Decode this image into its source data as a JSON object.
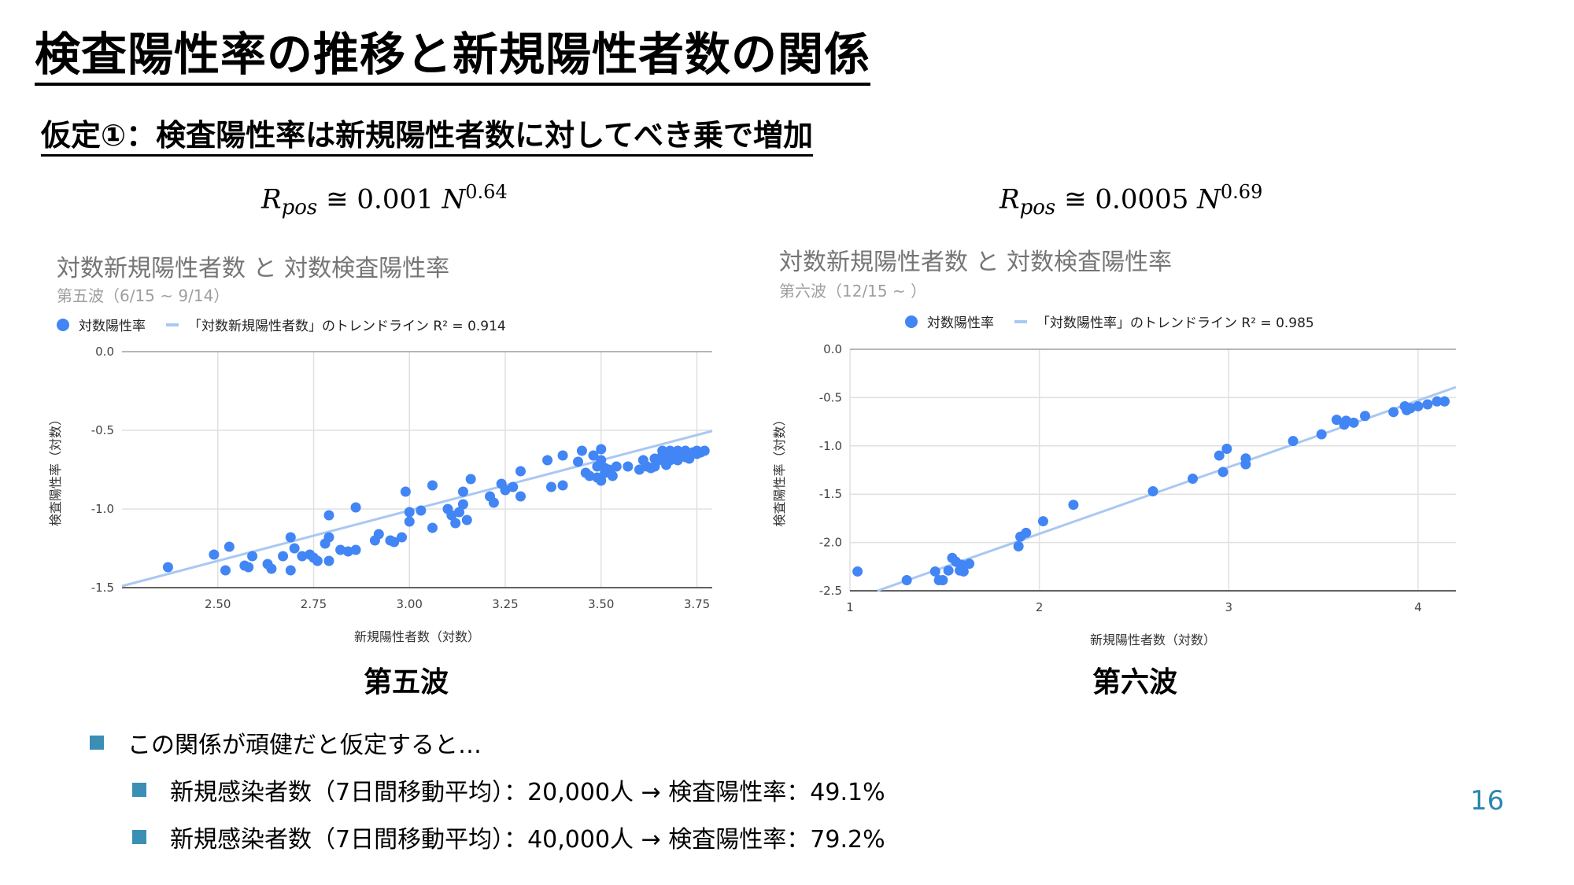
{
  "slide": {
    "title": "検査陽性率の推移と新規陽性者数の関係",
    "subtitle": "仮定①：検査陽性率は新規陽性者数に対してべき乗で増加",
    "page_number": "16"
  },
  "formulas": [
    {
      "lhs_var": "R",
      "lhs_sub": "pos",
      "op": "≅",
      "coef": "0.001",
      "var": "N",
      "exp": "0.64"
    },
    {
      "lhs_var": "R",
      "lhs_sub": "pos",
      "op": "≅",
      "coef": "0.0005",
      "var": "N",
      "exp": "0.69"
    }
  ],
  "wave_labels": [
    "第五波",
    "第六波"
  ],
  "bullets": {
    "main": "この関係が頑健だと仮定すると…",
    "sub": [
      {
        "text": "新規感染者数（7日間移動平均）：20,000人 → 検査陽性率：49.1%"
      },
      {
        "text": "新規感染者数（7日間移動平均）：40,000人 → 検査陽性率：79.2%"
      }
    ]
  },
  "colors": {
    "point": "#4285f4",
    "trendline": "#a9c8f2",
    "grid": "#e0e0e0",
    "bullet": "#3b8fb5",
    "page_number": "#2e86b0"
  },
  "chart_data": [
    {
      "type": "scatter",
      "title": "対数新規陽性者数 と 対数検査陽性率",
      "subtitle": "第五波（6/15 ~ 9/14）",
      "xlabel": "新規陽性者数（対数）",
      "ylabel": "検査陽性率（対数）",
      "xlim": [
        2.25,
        3.79
      ],
      "ylim": [
        -1.5,
        0.0
      ],
      "xticks": [
        2.5,
        2.75,
        3.0,
        3.25,
        3.5,
        3.75
      ],
      "xtick_labels": [
        "2.50",
        "2.75",
        "3.00",
        "3.25",
        "3.50",
        "3.75"
      ],
      "yticks": [
        0.0,
        -0.5,
        -1.0,
        -1.5
      ],
      "ytick_labels": [
        "0.0",
        "-0.5",
        "-1.0",
        "-1.5"
      ],
      "grid": true,
      "legend_position": "top-left",
      "series": [
        {
          "name": "対数陽性率",
          "points": [
            [
              2.37,
              -1.37
            ],
            [
              2.49,
              -1.29
            ],
            [
              2.52,
              -1.39
            ],
            [
              2.53,
              -1.24
            ],
            [
              2.57,
              -1.36
            ],
            [
              2.58,
              -1.37
            ],
            [
              2.59,
              -1.3
            ],
            [
              2.63,
              -1.35
            ],
            [
              2.64,
              -1.38
            ],
            [
              2.67,
              -1.3
            ],
            [
              2.69,
              -1.18
            ],
            [
              2.69,
              -1.39
            ],
            [
              2.7,
              -1.25
            ],
            [
              2.72,
              -1.3
            ],
            [
              2.74,
              -1.29
            ],
            [
              2.75,
              -1.31
            ],
            [
              2.76,
              -1.33
            ],
            [
              2.78,
              -1.22
            ],
            [
              2.79,
              -1.18
            ],
            [
              2.79,
              -1.04
            ],
            [
              2.79,
              -1.33
            ],
            [
              2.82,
              -1.26
            ],
            [
              2.84,
              -1.27
            ],
            [
              2.86,
              -1.26
            ],
            [
              2.86,
              -0.99
            ],
            [
              2.91,
              -1.2
            ],
            [
              2.92,
              -1.16
            ],
            [
              2.95,
              -1.2
            ],
            [
              2.96,
              -1.21
            ],
            [
              2.98,
              -1.18
            ],
            [
              2.99,
              -0.89
            ],
            [
              3.0,
              -1.02
            ],
            [
              3.0,
              -1.08
            ],
            [
              3.03,
              -1.01
            ],
            [
              3.06,
              -0.85
            ],
            [
              3.06,
              -1.12
            ],
            [
              3.1,
              -1.0
            ],
            [
              3.11,
              -1.04
            ],
            [
              3.12,
              -1.09
            ],
            [
              3.13,
              -1.02
            ],
            [
              3.14,
              -0.89
            ],
            [
              3.14,
              -0.97
            ],
            [
              3.15,
              -1.07
            ],
            [
              3.16,
              -0.81
            ],
            [
              3.21,
              -0.92
            ],
            [
              3.22,
              -0.96
            ],
            [
              3.24,
              -0.84
            ],
            [
              3.25,
              -0.88
            ],
            [
              3.27,
              -0.86
            ],
            [
              3.29,
              -0.76
            ],
            [
              3.29,
              -0.92
            ],
            [
              3.36,
              -0.69
            ],
            [
              3.37,
              -0.86
            ],
            [
              3.4,
              -0.85
            ],
            [
              3.4,
              -0.66
            ],
            [
              3.44,
              -0.7
            ],
            [
              3.45,
              -0.63
            ],
            [
              3.46,
              -0.77
            ],
            [
              3.47,
              -0.79
            ],
            [
              3.48,
              -0.66
            ],
            [
              3.49,
              -0.8
            ],
            [
              3.49,
              -0.73
            ],
            [
              3.5,
              -0.69
            ],
            [
              3.5,
              -0.62
            ],
            [
              3.5,
              -0.82
            ],
            [
              3.51,
              -0.77
            ],
            [
              3.51,
              -0.74
            ],
            [
              3.52,
              -0.75
            ],
            [
              3.53,
              -0.79
            ],
            [
              3.54,
              -0.73
            ],
            [
              3.57,
              -0.73
            ],
            [
              3.6,
              -0.75
            ],
            [
              3.61,
              -0.69
            ],
            [
              3.62,
              -0.73
            ],
            [
              3.63,
              -0.74
            ],
            [
              3.64,
              -0.68
            ],
            [
              3.64,
              -0.73
            ],
            [
              3.65,
              -0.69
            ],
            [
              3.66,
              -0.66
            ],
            [
              3.66,
              -0.63
            ],
            [
              3.67,
              -0.72
            ],
            [
              3.67,
              -0.65
            ],
            [
              3.68,
              -0.69
            ],
            [
              3.68,
              -0.63
            ],
            [
              3.69,
              -0.66
            ],
            [
              3.7,
              -0.69
            ],
            [
              3.7,
              -0.63
            ],
            [
              3.71,
              -0.65
            ],
            [
              3.72,
              -0.67
            ],
            [
              3.72,
              -0.63
            ],
            [
              3.73,
              -0.68
            ],
            [
              3.74,
              -0.64
            ],
            [
              3.75,
              -0.65
            ],
            [
              3.75,
              -0.63
            ],
            [
              3.76,
              -0.64
            ],
            [
              3.77,
              -0.63
            ]
          ]
        },
        {
          "name": "「対数新規陽性者数」のトレンドライン R² = 0.914",
          "trendline": {
            "slope": 0.64,
            "intercept": -2.93
          }
        }
      ]
    },
    {
      "type": "scatter",
      "title": "対数新規陽性者数 と 対数検査陽性率",
      "subtitle": "第六波（12/15 ~ ）",
      "xlabel": "新規陽性者数（対数）",
      "ylabel": "検査陽性率（対数）",
      "xlim": [
        1.0,
        4.2
      ],
      "ylim": [
        -2.5,
        0.0
      ],
      "xticks": [
        1,
        2,
        3,
        4
      ],
      "xtick_labels": [
        "1",
        "2",
        "3",
        "4"
      ],
      "yticks": [
        0.0,
        -0.5,
        -1.0,
        -1.5,
        -2.0,
        -2.5
      ],
      "ytick_labels": [
        "0.0",
        "-0.5",
        "-1.0",
        "-1.5",
        "-2.0",
        "-2.5"
      ],
      "grid": true,
      "legend_position": "top",
      "series": [
        {
          "name": "対数陽性率",
          "points": [
            [
              1.04,
              -2.3
            ],
            [
              1.3,
              -2.39
            ],
            [
              1.45,
              -2.3
            ],
            [
              1.47,
              -2.39
            ],
            [
              1.49,
              -2.39
            ],
            [
              1.52,
              -2.29
            ],
            [
              1.54,
              -2.16
            ],
            [
              1.56,
              -2.2
            ],
            [
              1.58,
              -2.29
            ],
            [
              1.59,
              -2.23
            ],
            [
              1.6,
              -2.3
            ],
            [
              1.63,
              -2.22
            ],
            [
              1.89,
              -2.04
            ],
            [
              1.9,
              -1.94
            ],
            [
              1.93,
              -1.9
            ],
            [
              2.02,
              -1.78
            ],
            [
              2.18,
              -1.61
            ],
            [
              2.6,
              -1.47
            ],
            [
              2.81,
              -1.34
            ],
            [
              2.95,
              -1.1
            ],
            [
              2.97,
              -1.27
            ],
            [
              2.99,
              -1.03
            ],
            [
              3.09,
              -1.13
            ],
            [
              3.09,
              -1.19
            ],
            [
              3.34,
              -0.95
            ],
            [
              3.49,
              -0.88
            ],
            [
              3.57,
              -0.73
            ],
            [
              3.61,
              -0.78
            ],
            [
              3.62,
              -0.74
            ],
            [
              3.66,
              -0.76
            ],
            [
              3.72,
              -0.69
            ],
            [
              3.87,
              -0.65
            ],
            [
              3.93,
              -0.59
            ],
            [
              3.94,
              -0.63
            ],
            [
              3.96,
              -0.61
            ],
            [
              4.0,
              -0.59
            ],
            [
              4.05,
              -0.57
            ],
            [
              4.1,
              -0.54
            ],
            [
              4.14,
              -0.54
            ]
          ]
        },
        {
          "name": "「対数陽性率」のトレンドライン R² = 0.985",
          "trendline": {
            "slope": 0.69,
            "intercept": -3.29
          }
        }
      ]
    }
  ]
}
